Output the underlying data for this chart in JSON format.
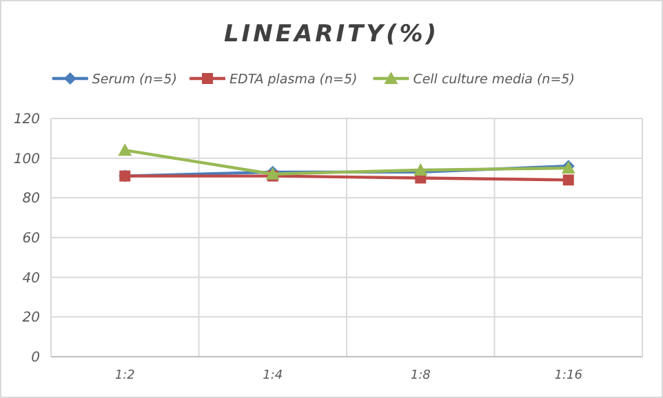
{
  "chart_data": {
    "type": "line",
    "title": "LINEARITY(%)",
    "categories": [
      "1:2",
      "1:4",
      "1:8",
      "1:16"
    ],
    "series": [
      {
        "name": "Serum (n=5)",
        "color": "#4a7ebb",
        "marker": "diamond",
        "values": [
          91,
          93,
          93,
          96
        ]
      },
      {
        "name": "EDTA plasma (n=5)",
        "color": "#be4b48",
        "marker": "square",
        "values": [
          91,
          91,
          90,
          89
        ]
      },
      {
        "name": "Cell culture media (n=5)",
        "color": "#98b954",
        "marker": "triangle",
        "values": [
          104,
          92,
          94,
          95
        ]
      }
    ],
    "ylim": [
      0,
      120
    ],
    "yticks": [
      0,
      20,
      40,
      60,
      80,
      100,
      120
    ],
    "grid": true,
    "legend": "top"
  }
}
